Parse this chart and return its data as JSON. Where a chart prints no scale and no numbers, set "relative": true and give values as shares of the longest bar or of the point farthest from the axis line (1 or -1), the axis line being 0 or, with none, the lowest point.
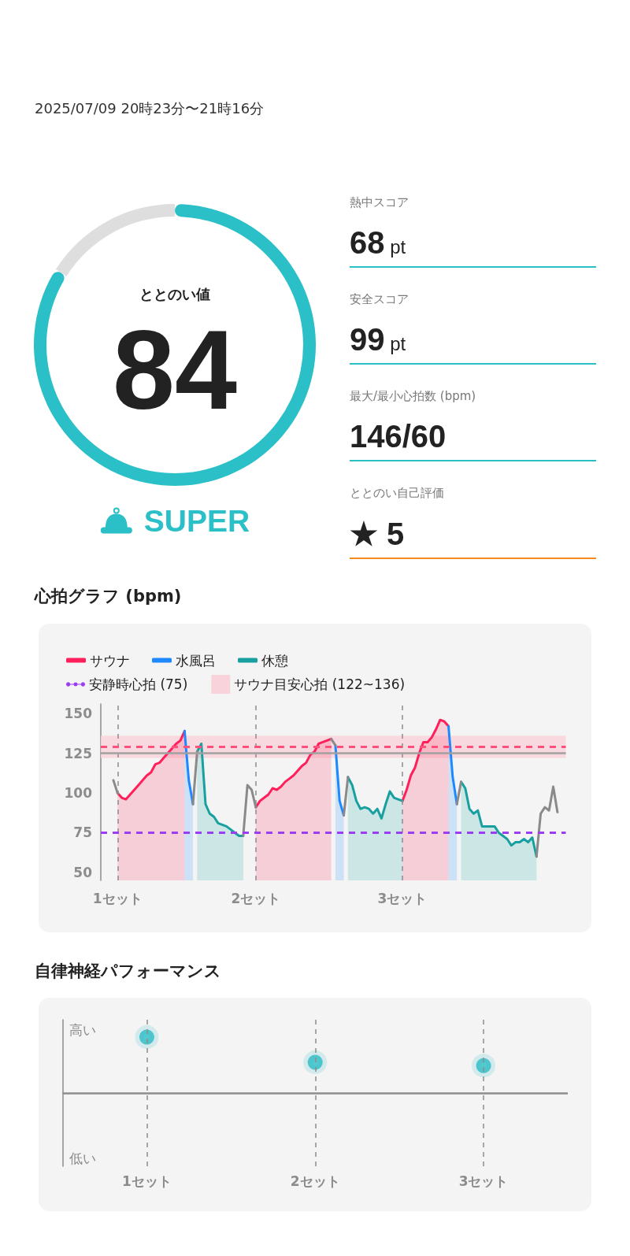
{
  "chart_data": [
    {
      "type": "donut",
      "title": "ととのい値",
      "subtitle": "2025/07/09 20時23分〜21時16分",
      "categories": [
        null,
        null
      ],
      "values": [
        84,
        16
      ],
      "colors": [
        "#2bbfc8",
        "#dedede"
      ],
      "value_labels": [
        "84",
        null
      ],
      "annotations": [
        "SUPER"
      ]
    },
    {
      "type": "other",
      "annotations": [
        "熱中スコア",
        "68 pt",
        "安全スコア",
        "99 pt",
        "最大/最小心拍数 (bpm)",
        "146/60",
        "ととのい自己評価",
        "★ 5"
      ],
      "colors": [
        "#2bbfc8",
        "#2bbfc8",
        "#2bbfc8",
        "#f5891f"
      ]
    },
    {
      "type": "area",
      "title": "心拍グラフ (bpm)",
      "legend": "top left",
      "grid": "x",
      "ylim": [
        45,
        156
      ],
      "yticks": [
        50,
        75,
        100,
        125,
        150
      ],
      "categories": [
        null,
        null,
        null,
        null,
        "1セット",
        null,
        null,
        null,
        null,
        null,
        null,
        null,
        null,
        null,
        null,
        null,
        null,
        null,
        null,
        null,
        null,
        null,
        null,
        null,
        null,
        null,
        null,
        null,
        null,
        null,
        null,
        null,
        null,
        null,
        null,
        null,
        null,
        "2セット",
        null,
        null,
        null,
        null,
        null,
        null,
        null,
        null,
        null,
        null,
        null,
        null,
        null,
        null,
        null,
        null,
        null,
        null,
        null,
        null,
        null,
        null,
        null,
        null,
        null,
        null,
        null,
        null,
        null,
        null,
        null,
        null,
        null,
        null,
        "3セット",
        null,
        null,
        null,
        null,
        null,
        null,
        null,
        null,
        null,
        null,
        null,
        null,
        null,
        null,
        null,
        null,
        null,
        null,
        null,
        null,
        null,
        null,
        null,
        null,
        null,
        null,
        null,
        null,
        null,
        null,
        null,
        null,
        null,
        null,
        null,
        null,
        null,
        null,
        null
      ],
      "series": [
        {
          "name": "サウナ",
          "color": "#ff1f5a",
          "values": [
            null,
            null,
            null,
            null,
            100,
            97,
            96,
            99,
            102,
            105,
            108,
            111,
            113,
            118,
            119,
            122,
            125,
            128,
            131,
            133,
            139,
            null,
            null,
            null,
            null,
            null,
            null,
            null,
            null,
            null,
            null,
            null,
            null,
            null,
            null,
            null,
            null,
            91,
            95,
            97,
            99,
            103,
            102,
            104,
            107,
            109,
            111,
            114,
            117,
            119,
            124,
            126,
            131,
            132,
            133,
            134,
            null,
            null,
            null,
            null,
            null,
            null,
            null,
            null,
            null,
            null,
            null,
            null,
            null,
            null,
            null,
            null,
            95,
            102,
            111,
            116,
            125,
            132,
            132,
            135,
            140,
            146,
            145,
            142,
            null,
            null,
            null,
            null,
            null,
            null,
            null,
            null,
            null,
            null,
            null,
            null,
            null,
            null,
            null,
            null,
            null,
            null,
            null,
            null,
            null,
            null,
            null,
            null,
            null,
            null,
            null,
            null
          ]
        },
        {
          "name": "水風呂",
          "color": "#1e88ff",
          "values": [
            null,
            null,
            null,
            null,
            null,
            null,
            null,
            null,
            null,
            null,
            null,
            null,
            null,
            null,
            null,
            null,
            null,
            null,
            null,
            null,
            139,
            108,
            93,
            null,
            null,
            null,
            null,
            null,
            null,
            null,
            null,
            null,
            null,
            null,
            null,
            null,
            null,
            null,
            null,
            null,
            null,
            null,
            null,
            null,
            null,
            null,
            null,
            null,
            null,
            null,
            null,
            null,
            null,
            null,
            null,
            null,
            130,
            95,
            86,
            null,
            null,
            null,
            null,
            null,
            null,
            null,
            null,
            null,
            null,
            null,
            null,
            null,
            null,
            null,
            null,
            null,
            null,
            null,
            null,
            null,
            null,
            null,
            null,
            142,
            110,
            93,
            null,
            null,
            null,
            null,
            null,
            null,
            null,
            null,
            null,
            null,
            null,
            null,
            null,
            null,
            null,
            null,
            null,
            null,
            null,
            null,
            null,
            null,
            null,
            null,
            null,
            null
          ]
        },
        {
          "name": "休憩",
          "color": "#18a0a0",
          "values": [
            null,
            null,
            null,
            null,
            null,
            null,
            null,
            null,
            null,
            null,
            null,
            null,
            null,
            null,
            null,
            null,
            null,
            null,
            null,
            null,
            null,
            null,
            null,
            126,
            131,
            93,
            87,
            85,
            81,
            80,
            79,
            77,
            75,
            73,
            73,
            null,
            null,
            null,
            null,
            null,
            null,
            null,
            null,
            null,
            null,
            null,
            null,
            null,
            null,
            null,
            null,
            null,
            null,
            null,
            null,
            null,
            null,
            null,
            null,
            110,
            105,
            95,
            90,
            91,
            90,
            87,
            90,
            84,
            93,
            101,
            97,
            96,
            95,
            null,
            null,
            null,
            null,
            null,
            null,
            null,
            null,
            null,
            null,
            null,
            null,
            null,
            107,
            103,
            90,
            87,
            89,
            79,
            79,
            79,
            79,
            75,
            73,
            71,
            67,
            69,
            69,
            71,
            69,
            72,
            60,
            null,
            null,
            null,
            null,
            null,
            null,
            null
          ]
        },
        {
          "type": "line",
          "color": "#8a8a8a",
          "values": [
            null,
            null,
            null,
            108,
            100,
            null,
            null,
            null,
            null,
            null,
            null,
            null,
            null,
            null,
            null,
            null,
            null,
            null,
            null,
            null,
            null,
            null,
            93,
            126,
            null,
            null,
            null,
            null,
            null,
            null,
            null,
            null,
            null,
            null,
            73,
            105,
            102,
            91,
            null,
            null,
            null,
            null,
            null,
            null,
            null,
            null,
            null,
            null,
            null,
            null,
            null,
            null,
            null,
            null,
            null,
            134,
            130,
            null,
            86,
            110,
            null,
            null,
            null,
            null,
            null,
            null,
            null,
            null,
            null,
            null,
            null,
            null,
            null,
            null,
            null,
            null,
            null,
            null,
            null,
            null,
            null,
            null,
            null,
            null,
            null,
            93,
            107,
            null,
            null,
            null,
            null,
            null,
            null,
            null,
            null,
            null,
            null,
            null,
            null,
            null,
            null,
            null,
            null,
            null,
            60,
            87,
            91,
            89,
            104,
            88,
            null,
            null
          ]
        }
      ],
      "ref_lines": [
        {
          "axis": "y",
          "value": 75,
          "label": "安静時心拍 (75)",
          "color": "#9b3df0",
          "line_style": "dashed"
        },
        {
          "axis": "y",
          "value": 129,
          "color": "#ff4f7b",
          "line_style": "dashed"
        },
        {
          "axis": "y",
          "value": 125,
          "color": "#a0a0a0",
          "line_style": "solid"
        }
      ],
      "bands": [
        {
          "axis": "y",
          "from": 122,
          "to": 136,
          "label": "サウナ目安心拍 (122~136)",
          "color": "#f9d3dc"
        }
      ]
    },
    {
      "type": "scatter",
      "title": "自律神経パフォーマンス",
      "categories": [
        "1セット",
        "2セット",
        "3セット"
      ],
      "values": [
        1,
        0.55,
        0.49
      ],
      "relative": true,
      "color": "#2bbdc6",
      "marker": "circle",
      "grid": "x",
      "annotations": [
        "高い",
        "低い"
      ],
      "ref_lines": [
        {
          "axis": "y",
          "value": 0,
          "color": "#8c8c8c",
          "line_style": "solid"
        }
      ]
    }
  ]
}
